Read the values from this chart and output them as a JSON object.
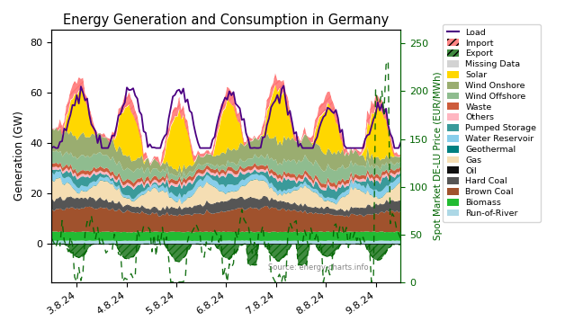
{
  "title": "Energy Generation and Consumption in Germany",
  "ylabel_left": "Generation (GW)",
  "ylabel_right": "Spot Market DE-LU Price (EUR/MWh)",
  "source": "Source: energy-charts.info",
  "x_ticks": [
    "3.8.24",
    "4.8.24",
    "5.8.24",
    "6.8.24",
    "7.8.24",
    "8.8.24",
    "9.8.24"
  ],
  "ylim_left": [
    -15,
    85
  ],
  "ylim_right": [
    0,
    265
  ],
  "colors": {
    "run_of_river": "#add8e6",
    "biomass": "#22bb33",
    "brown_coal": "#a0522d",
    "hard_coal": "#555555",
    "oil": "#111111",
    "gas": "#f5deb3",
    "geothermal": "#008080",
    "water_reservoir": "#87ceeb",
    "pumped_storage": "#3a9a9a",
    "others": "#ffb6c1",
    "waste": "#cd5c3c",
    "wind_offshore": "#8fbc8f",
    "wind_onshore": "#9aad70",
    "solar": "#ffd700",
    "missing_data": "#d3d3d3",
    "import_energy": "#ff7070",
    "export_energy": "#006400",
    "load": "#4b0082",
    "spot_price": "#006400"
  }
}
